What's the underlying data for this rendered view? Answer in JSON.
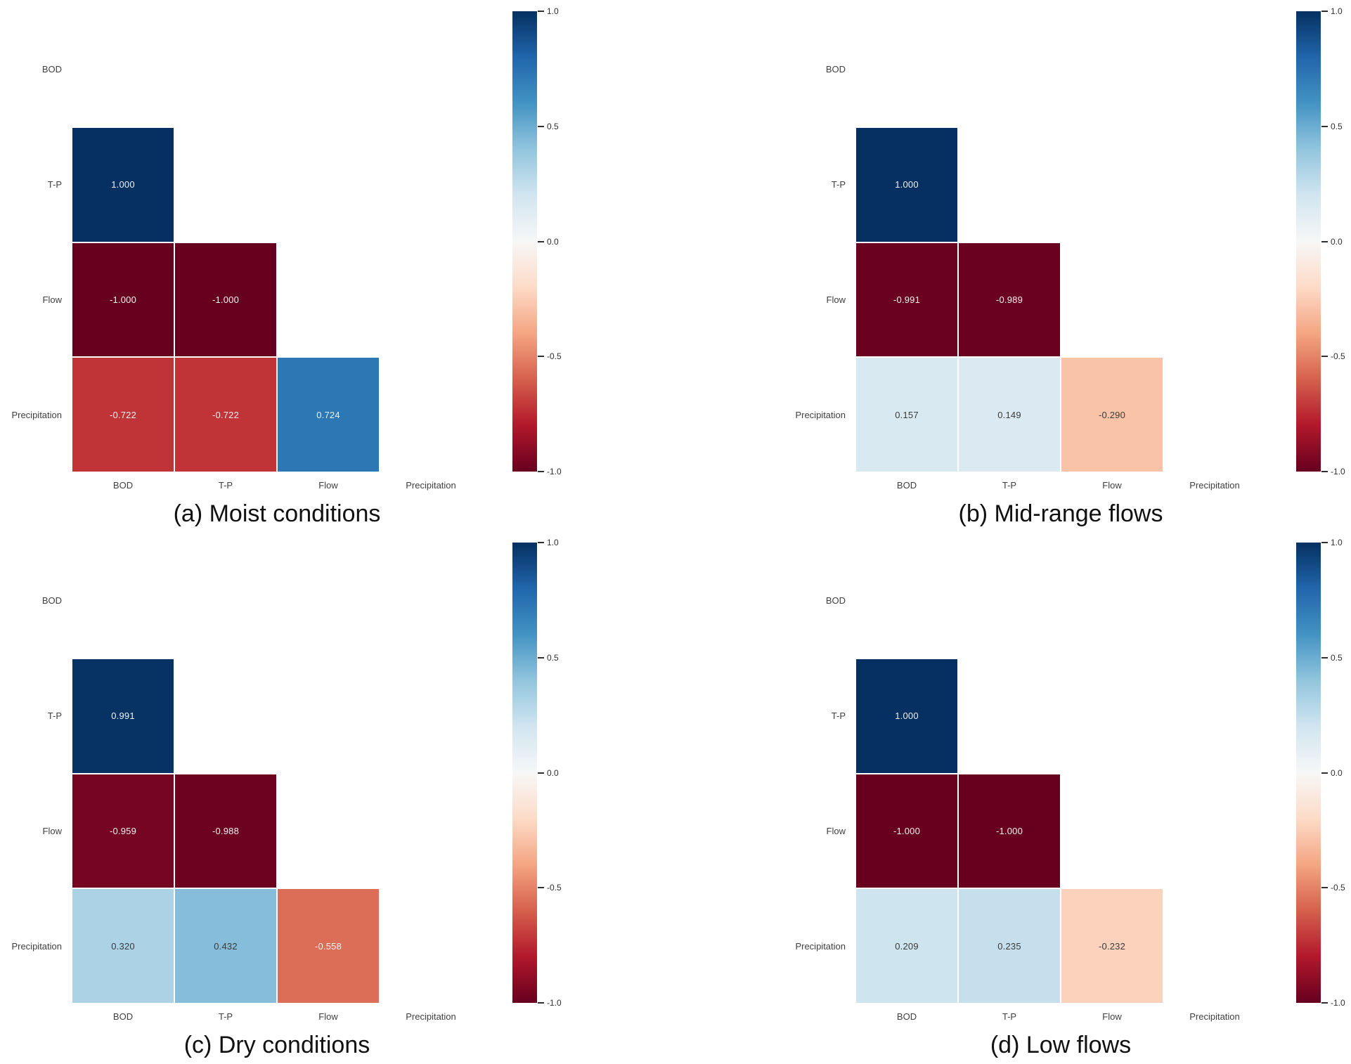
{
  "chart_data": {
    "type": "heatmap",
    "subtype": "lower-triangle-correlation-matrix",
    "variables": [
      "BOD",
      "T-P",
      "Flow",
      "Precipitation"
    ],
    "scale": {
      "min": -1.0,
      "max": 1.0,
      "tick_labels": [
        "1.0",
        "0.5",
        "0.0",
        "-0.5",
        "-1.0"
      ],
      "tick_values": [
        1.0,
        0.5,
        0.0,
        -0.5,
        -1.0
      ]
    },
    "colormap": {
      "name": "RdBu",
      "anchors_low_to_high": [
        "#67001f",
        "#b2182b",
        "#d6604d",
        "#f4a582",
        "#fddbc7",
        "#f7f7f7",
        "#d1e5f0",
        "#92c5de",
        "#4393c3",
        "#2166ac",
        "#053061"
      ]
    },
    "panels": [
      {
        "id": "a",
        "caption": "(a) Moist conditions",
        "values": [
          [
            null,
            null,
            null,
            null
          ],
          [
            "1.000",
            null,
            null,
            null
          ],
          [
            "-1.000",
            "-1.000",
            null,
            null
          ],
          [
            "-0.722",
            "-0.722",
            "0.724",
            null
          ]
        ]
      },
      {
        "id": "b",
        "caption": "(b) Mid-range flows",
        "values": [
          [
            null,
            null,
            null,
            null
          ],
          [
            "1.000",
            null,
            null,
            null
          ],
          [
            "-0.991",
            "-0.989",
            null,
            null
          ],
          [
            "0.157",
            "0.149",
            "-0.290",
            null
          ]
        ]
      },
      {
        "id": "c",
        "caption": "(c) Dry conditions",
        "values": [
          [
            null,
            null,
            null,
            null
          ],
          [
            "0.991",
            null,
            null,
            null
          ],
          [
            "-0.959",
            "-0.988",
            null,
            null
          ],
          [
            "0.320",
            "0.432",
            "-0.558",
            null
          ]
        ]
      },
      {
        "id": "d",
        "caption": "(d) Low flows",
        "values": [
          [
            null,
            null,
            null,
            null
          ],
          [
            "1.000",
            null,
            null,
            null
          ],
          [
            "-1.000",
            "-1.000",
            null,
            null
          ],
          [
            "0.209",
            "0.235",
            "-0.232",
            null
          ]
        ]
      }
    ]
  },
  "cell_text_colors": {
    "light": "#f2f2f2",
    "dark": "#3a3a3a"
  }
}
